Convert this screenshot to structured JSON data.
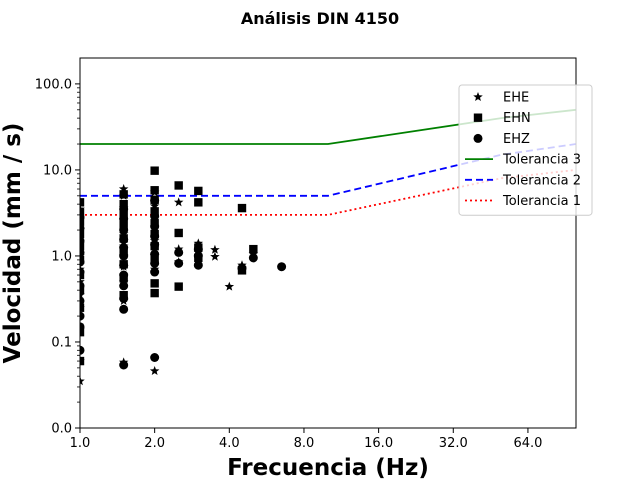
{
  "chart_data": {
    "type": "scatter",
    "title": "Análisis DIN 4150",
    "xlabel": "Frecuencia (Hz)",
    "ylabel": "Velocidad (mm / s)",
    "x_scale": "log2",
    "y_scale": "log10",
    "xlim": [
      1.0,
      100.0
    ],
    "ylim": [
      0.01,
      200.0
    ],
    "x_ticks": [
      1.0,
      2.0,
      4.0,
      8.0,
      16.0,
      32.0,
      64.0
    ],
    "x_tick_labels": [
      "1.0",
      "2.0",
      "4.0",
      "8.0",
      "16.0",
      "32.0",
      "64.0"
    ],
    "y_ticks": [
      0.01,
      0.1,
      1.0,
      10.0,
      100.0
    ],
    "y_tick_labels": [
      "0.0",
      "0.1",
      "1.0",
      "10.0",
      "100.0"
    ],
    "legend_position": "upper-right",
    "series": [
      {
        "name": "EHE",
        "kind": "scatter",
        "marker": "star",
        "color": "#000000",
        "points": [
          [
            1.0,
            0.035
          ],
          [
            1.0,
            0.06
          ],
          [
            1.0,
            0.14
          ],
          [
            1.0,
            0.25
          ],
          [
            1.0,
            0.35
          ],
          [
            1.0,
            0.5
          ],
          [
            1.0,
            0.7
          ],
          [
            1.0,
            1.0
          ],
          [
            1.0,
            1.4
          ],
          [
            1.0,
            2.0
          ],
          [
            1.0,
            2.8
          ],
          [
            1.0,
            3.5
          ],
          [
            1.5,
            0.058
          ],
          [
            1.5,
            0.3
          ],
          [
            1.5,
            0.5
          ],
          [
            1.5,
            0.75
          ],
          [
            1.5,
            1.0
          ],
          [
            1.5,
            1.3
          ],
          [
            1.5,
            1.8
          ],
          [
            1.5,
            2.6
          ],
          [
            1.5,
            3.6
          ],
          [
            1.5,
            5.0
          ],
          [
            1.5,
            6.0
          ],
          [
            2.0,
            0.046
          ],
          [
            2.0,
            0.7
          ],
          [
            2.0,
            1.0
          ],
          [
            2.0,
            1.5
          ],
          [
            2.0,
            2.2
          ],
          [
            2.0,
            3.8
          ],
          [
            2.0,
            5.5
          ],
          [
            2.5,
            0.85
          ],
          [
            2.5,
            1.2
          ],
          [
            2.5,
            4.2
          ],
          [
            3.0,
            1.1
          ],
          [
            3.0,
            1.4
          ],
          [
            3.5,
            0.98
          ],
          [
            3.5,
            1.18
          ],
          [
            4.0,
            0.44
          ],
          [
            4.5,
            0.78
          ],
          [
            5.0,
            1.05
          ]
        ]
      },
      {
        "name": "EHN",
        "kind": "scatter",
        "marker": "square",
        "color": "#000000",
        "points": [
          [
            1.0,
            0.06
          ],
          [
            1.0,
            0.13
          ],
          [
            1.0,
            0.25
          ],
          [
            1.0,
            0.4
          ],
          [
            1.0,
            0.6
          ],
          [
            1.0,
            0.9
          ],
          [
            1.0,
            1.3
          ],
          [
            1.0,
            1.8
          ],
          [
            1.0,
            2.5
          ],
          [
            1.0,
            3.2
          ],
          [
            1.0,
            4.2
          ],
          [
            1.5,
            0.35
          ],
          [
            1.5,
            0.55
          ],
          [
            1.5,
            0.8
          ],
          [
            1.5,
            1.1
          ],
          [
            1.5,
            1.6
          ],
          [
            1.5,
            2.3
          ],
          [
            1.5,
            3.0
          ],
          [
            1.5,
            4.0
          ],
          [
            1.5,
            5.2
          ],
          [
            2.0,
            0.37
          ],
          [
            2.0,
            0.48
          ],
          [
            2.0,
            0.9
          ],
          [
            2.0,
            1.3
          ],
          [
            2.0,
            1.8
          ],
          [
            2.0,
            2.4
          ],
          [
            2.0,
            3.3
          ],
          [
            2.0,
            4.5
          ],
          [
            2.0,
            5.8
          ],
          [
            2.0,
            9.8
          ],
          [
            2.5,
            0.44
          ],
          [
            2.5,
            1.85
          ],
          [
            2.5,
            6.6
          ],
          [
            3.0,
            0.95
          ],
          [
            3.0,
            1.25
          ],
          [
            3.0,
            4.2
          ],
          [
            3.0,
            5.7
          ],
          [
            4.5,
            0.68
          ],
          [
            4.5,
            3.6
          ],
          [
            5.0,
            1.2
          ]
        ]
      },
      {
        "name": "EHZ",
        "kind": "scatter",
        "marker": "circle",
        "color": "#000000",
        "points": [
          [
            1.0,
            0.08
          ],
          [
            1.0,
            0.15
          ],
          [
            1.0,
            0.2
          ],
          [
            1.0,
            0.3
          ],
          [
            1.0,
            0.45
          ],
          [
            1.0,
            0.65
          ],
          [
            1.0,
            0.85
          ],
          [
            1.0,
            1.1
          ],
          [
            1.0,
            1.5
          ],
          [
            1.0,
            2.1
          ],
          [
            1.0,
            2.8
          ],
          [
            1.5,
            0.054
          ],
          [
            1.5,
            0.24
          ],
          [
            1.5,
            0.32
          ],
          [
            1.5,
            0.45
          ],
          [
            1.5,
            0.6
          ],
          [
            1.5,
            0.78
          ],
          [
            1.5,
            1.0
          ],
          [
            1.5,
            1.25
          ],
          [
            1.5,
            1.55
          ],
          [
            1.5,
            2.0
          ],
          [
            1.5,
            2.7
          ],
          [
            1.5,
            3.5
          ],
          [
            2.0,
            0.066
          ],
          [
            2.0,
            0.65
          ],
          [
            2.0,
            0.82
          ],
          [
            2.0,
            1.05
          ],
          [
            2.0,
            1.35
          ],
          [
            2.0,
            1.7
          ],
          [
            2.0,
            2.2
          ],
          [
            2.0,
            2.9
          ],
          [
            2.0,
            4.4
          ],
          [
            2.5,
            0.82
          ],
          [
            2.5,
            1.1
          ],
          [
            3.0,
            0.78
          ],
          [
            3.0,
            1.0
          ],
          [
            3.0,
            1.2
          ],
          [
            4.5,
            0.72
          ],
          [
            5.0,
            0.95
          ],
          [
            6.5,
            0.75
          ]
        ]
      },
      {
        "name": "Tolerancia 3",
        "kind": "line",
        "style": "solid",
        "color": "#008000",
        "points": [
          [
            1.0,
            20.0
          ],
          [
            10.0,
            20.0
          ],
          [
            50.0,
            40.0
          ],
          [
            100.0,
            50.0
          ]
        ]
      },
      {
        "name": "Tolerancia 2",
        "kind": "line",
        "style": "dashed",
        "color": "#0000ff",
        "points": [
          [
            1.0,
            5.0
          ],
          [
            10.0,
            5.0
          ],
          [
            50.0,
            15.0
          ],
          [
            100.0,
            20.0
          ]
        ]
      },
      {
        "name": "Tolerancia 1",
        "kind": "line",
        "style": "dotted",
        "color": "#ff0000",
        "points": [
          [
            1.0,
            3.0
          ],
          [
            10.0,
            3.0
          ],
          [
            50.0,
            8.0
          ],
          [
            100.0,
            10.0
          ]
        ]
      }
    ]
  }
}
